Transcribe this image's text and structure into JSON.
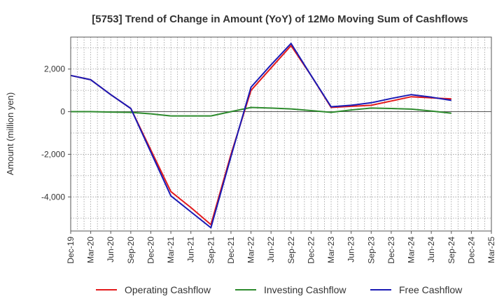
{
  "chart_data": {
    "type": "line",
    "title": "[5753]  Trend of Change in Amount (YoY) of 12Mo Moving Sum of Cashflows",
    "xlabel": "",
    "ylabel": "Amount (million yen)",
    "ylim": [
      -5600,
      3500
    ],
    "yticks": [
      2000,
      0,
      -2000,
      -4000
    ],
    "ytick_labels": [
      "2,000",
      "0",
      "-2,000",
      "-4,000"
    ],
    "categories": [
      "Dec-19",
      "Mar-20",
      "Jun-20",
      "Sep-20",
      "Dec-20",
      "Mar-21",
      "Jun-21",
      "Sep-21",
      "Dec-21",
      "Mar-22",
      "Jun-22",
      "Sep-22",
      "Dec-22",
      "Mar-23",
      "Jun-23",
      "Sep-23",
      "Dec-23",
      "Mar-24",
      "Jun-24",
      "Sep-24",
      "Dec-24",
      "Mar-25"
    ],
    "grid": true,
    "legend_position": "bottom",
    "series": [
      {
        "name": "Operating Cashflow",
        "color": "#e31a1c",
        "values": [
          1700,
          1500,
          800,
          150,
          -1800,
          -3750,
          -4500,
          -5300,
          -2000,
          1000,
          2050,
          3100,
          1700,
          200,
          250,
          300,
          500,
          700,
          650,
          600,
          null,
          null
        ]
      },
      {
        "name": "Investing Cashflow",
        "color": "#2e8b2e",
        "values": [
          0,
          0,
          -20,
          -30,
          -100,
          -200,
          -200,
          -200,
          0,
          200,
          170,
          130,
          50,
          -30,
          80,
          170,
          150,
          120,
          30,
          -70,
          null,
          null
        ]
      },
      {
        "name": "Free Cashflow",
        "color": "#1a1ab5",
        "values": [
          1700,
          1500,
          800,
          150,
          -1900,
          -3950,
          -4700,
          -5450,
          -2100,
          1150,
          2200,
          3200,
          1700,
          230,
          300,
          420,
          620,
          800,
          680,
          530,
          null,
          null
        ]
      }
    ]
  }
}
